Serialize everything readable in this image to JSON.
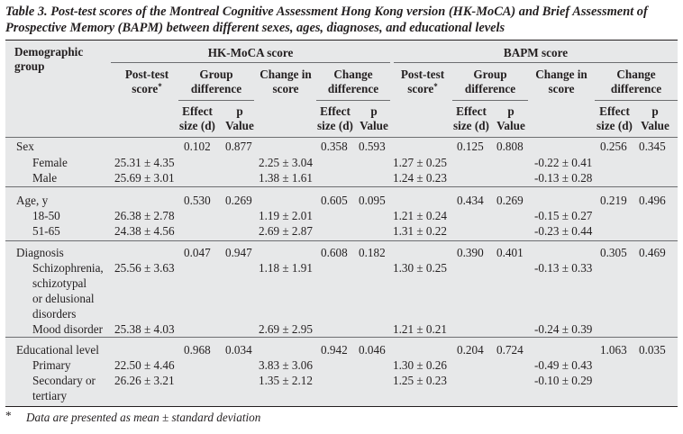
{
  "caption": "Table 3. Post-test scores of the Montreal Cognitive Assessment Hong Kong version (HK-MoCA) and Brief Assessment of Prospective Memory (BAPM) between different sexes, ages, diagnoses, and educational levels",
  "header": {
    "demo_group": "Demographic group",
    "hk_moca": "HK-MoCA score",
    "bapm": "BAPM score",
    "post_test": "Post-test score",
    "star": "*",
    "group_diff": "Group difference",
    "change_in": "Change in score",
    "change_diff": "Change difference",
    "effect": "Effect size (d)",
    "p_value": "p Value"
  },
  "rows": {
    "sex": {
      "label": "Sex",
      "hk_group_d": "0.102",
      "hk_group_p": "0.877",
      "hk_change_d": "0.358",
      "hk_change_p": "0.593",
      "bp_group_d": "0.125",
      "bp_group_p": "0.808",
      "bp_change_d": "0.256",
      "bp_change_p": "0.345"
    },
    "female": {
      "label": "Female",
      "hk_post": "25.31 ± 4.35",
      "hk_change": "2.25 ± 3.04",
      "bp_post": "1.27 ± 0.25",
      "bp_change": "-0.22 ± 0.41"
    },
    "male": {
      "label": "Male",
      "hk_post": "25.69 ± 3.01",
      "hk_change": "1.38 ± 1.61",
      "bp_post": "1.24 ± 0.23",
      "bp_change": "-0.13 ± 0.28"
    },
    "age": {
      "label": "Age, y",
      "hk_group_d": "0.530",
      "hk_group_p": "0.269",
      "hk_change_d": "0.605",
      "hk_change_p": "0.095",
      "bp_group_d": "0.434",
      "bp_group_p": "0.269",
      "bp_change_d": "0.219",
      "bp_change_p": "0.496"
    },
    "age1850": {
      "label": "18-50",
      "hk_post": "26.38 ± 2.78",
      "hk_change": "1.19 ± 2.01",
      "bp_post": "1.21 ± 0.24",
      "bp_change": "-0.15 ± 0.27"
    },
    "age5165": {
      "label": "51-65",
      "hk_post": "24.38 ± 4.56",
      "hk_change": "2.69 ± 2.87",
      "bp_post": "1.31 ± 0.22",
      "bp_change": "-0.23 ± 0.44"
    },
    "diagnosis": {
      "label": "Diagnosis",
      "hk_group_d": "0.047",
      "hk_group_p": "0.947",
      "hk_change_d": "0.608",
      "hk_change_p": "0.182",
      "bp_group_d": "0.390",
      "bp_group_p": "0.401",
      "bp_change_d": "0.305",
      "bp_change_p": "0.469"
    },
    "schizo": {
      "label1": "Schizophrenia,",
      "label2": "schizotypal",
      "label3": "or delusional",
      "label4": "disorders",
      "hk_post": "25.56 ± 3.63",
      "hk_change": "1.18 ± 1.91",
      "bp_post": "1.30 ± 0.25",
      "bp_change": "-0.13 ± 0.33"
    },
    "mood": {
      "label": "Mood disorder",
      "hk_post": "25.38 ± 4.03",
      "hk_change": "2.69 ± 2.95",
      "bp_post": "1.21 ± 0.21",
      "bp_change": "-0.24 ± 0.39"
    },
    "edu": {
      "label": "Educational level",
      "hk_group_d": "0.968",
      "hk_group_p": "0.034",
      "hk_change_d": "0.942",
      "hk_change_p": "0.046",
      "bp_group_d": "0.204",
      "bp_group_p": "0.724",
      "bp_change_d": "1.063",
      "bp_change_p": "0.035"
    },
    "primary": {
      "label": "Primary",
      "hk_post": "22.50 ± 4.46",
      "hk_change": "3.83 ± 3.06",
      "bp_post": "1.30 ± 0.26",
      "bp_change": "-0.49 ± 0.43"
    },
    "secondary": {
      "label1": "Secondary or",
      "label2": "tertiary",
      "hk_post": "26.26 ± 3.21",
      "hk_change": "1.35 ± 2.12",
      "bp_post": "1.25 ± 0.23",
      "bp_change": "-0.10 ± 0.29"
    }
  },
  "footnote": {
    "star": "*",
    "text": "Data are presented as mean ± standard deviation"
  }
}
